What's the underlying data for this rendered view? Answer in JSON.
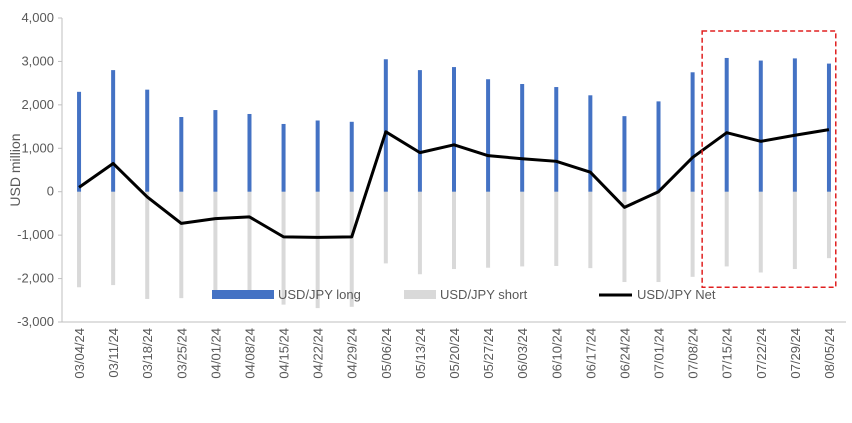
{
  "chart_data": {
    "type": "bar",
    "title": "",
    "xlabel": "",
    "ylabel": "USD million",
    "ylim": [
      -3000,
      4000
    ],
    "yticks": [
      4000,
      3000,
      2000,
      1000,
      0,
      -1000,
      -2000,
      -3000
    ],
    "ytick_labels": [
      "4,000",
      "3,000",
      "2,000",
      "1,000",
      "0",
      "-1,000",
      "-2,000",
      "-3,000"
    ],
    "grid": false,
    "legend_position": "bottom",
    "categories": [
      "03/04/24",
      "03/11/24",
      "03/18/24",
      "03/25/24",
      "04/01/24",
      "04/08/24",
      "04/15/24",
      "04/22/24",
      "04/29/24",
      "05/06/24",
      "05/13/24",
      "05/20/24",
      "05/27/24",
      "06/03/24",
      "06/10/24",
      "06/17/24",
      "06/24/24",
      "07/01/24",
      "07/08/24",
      "07/15/24",
      "07/22/24",
      "07/29/24",
      "08/05/24"
    ],
    "series": [
      {
        "name": "USD/JPY long",
        "kind": "bar",
        "color": "#4472c4",
        "values": [
          2300,
          2800,
          2350,
          1720,
          1880,
          1790,
          1560,
          1640,
          1610,
          3050,
          2800,
          2870,
          2590,
          2480,
          2410,
          2220,
          1740,
          2080,
          2750,
          3080,
          3020,
          3070,
          2950
        ]
      },
      {
        "name": "USD/JPY short",
        "kind": "bar",
        "color": "#d9d9d9",
        "values": [
          -2200,
          -2150,
          -2470,
          -2450,
          -2450,
          -2350,
          -2600,
          -2680,
          -2650,
          -1650,
          -1900,
          -1780,
          -1750,
          -1720,
          -1710,
          -1760,
          -2080,
          -2080,
          -1960,
          -1720,
          -1860,
          -1780,
          -1530
        ]
      },
      {
        "name": "USD/JPY Net",
        "kind": "line",
        "color": "#000000",
        "values": [
          100,
          650,
          -120,
          -730,
          -620,
          -580,
          -1040,
          -1050,
          -1040,
          1380,
          900,
          1080,
          830,
          760,
          700,
          450,
          -360,
          0,
          790,
          1360,
          1160,
          1300,
          1430
        ]
      }
    ],
    "annotation": {
      "type": "dashed-box",
      "color": "#e02020",
      "category_start": "07/15/24",
      "category_end": "08/05/24",
      "y_top": 3700,
      "y_bottom": -2200
    }
  }
}
